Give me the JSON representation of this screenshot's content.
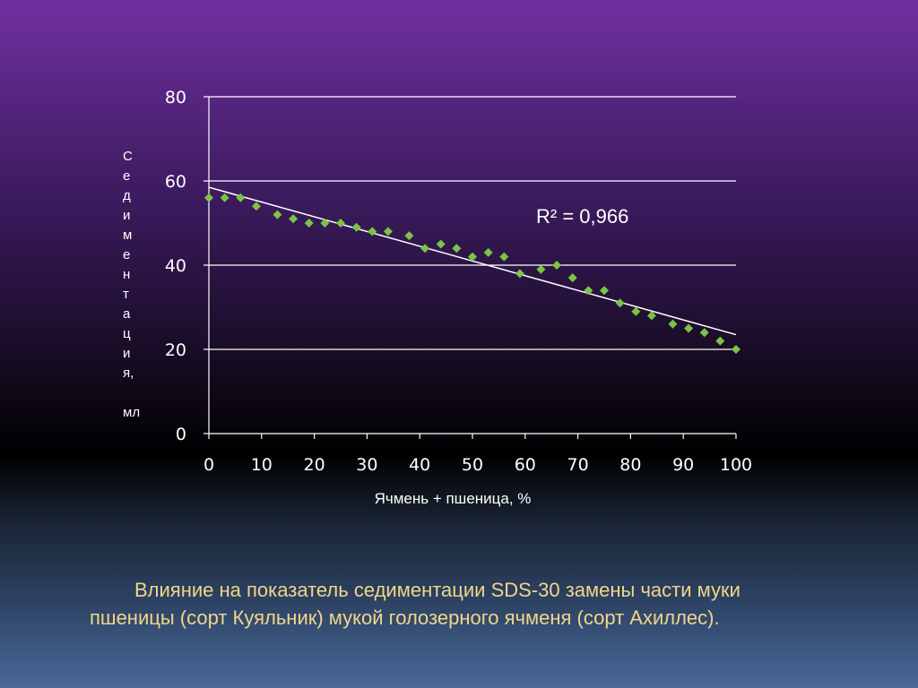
{
  "chart_data": {
    "type": "scatter",
    "xlabel": "Ячмень + пшеница, %",
    "ylabel": "Седиментация, мл",
    "ylabel_chars": [
      "С",
      "е",
      "д",
      "и",
      "м",
      "е",
      "н",
      "т",
      "а",
      "ц",
      "и",
      "я,",
      "",
      "мл"
    ],
    "xlim": [
      0,
      100
    ],
    "ylim": [
      0,
      80
    ],
    "xticks": [
      "0",
      "10",
      "20",
      "30",
      "40",
      "50",
      "60",
      "70",
      "80",
      "90",
      "100"
    ],
    "yticks": [
      "0",
      "20",
      "40",
      "60",
      "80"
    ],
    "grid": true,
    "marker_color": "#7cc444",
    "trendline": {
      "type": "linear",
      "x": [
        0,
        100
      ],
      "y": [
        58.5,
        23.5
      ],
      "color": "#ffffff"
    },
    "annotation": "R² = 0,966",
    "series": [
      {
        "x": [
          0,
          3,
          6,
          9,
          13,
          16,
          19,
          22,
          25,
          28,
          31,
          34,
          38,
          41,
          44,
          47,
          50,
          53,
          56,
          59,
          63,
          66,
          69,
          72,
          75,
          78,
          81,
          84,
          88,
          91,
          94,
          97,
          100
        ],
        "y": [
          56,
          56,
          56,
          54,
          52,
          51,
          50,
          50,
          50,
          49,
          48,
          48,
          47,
          44,
          45,
          44,
          42,
          43,
          42,
          38,
          39,
          40,
          37,
          34,
          34,
          31,
          29,
          28,
          26,
          25,
          24,
          22,
          20
        ]
      }
    ]
  },
  "caption": {
    "line1": "Влияние на показатель седиментации SDS-30 замены части муки",
    "line2": "пшеницы (сорт Куяльник)  мукой голозерного ячменя (сорт Ахиллес)."
  }
}
